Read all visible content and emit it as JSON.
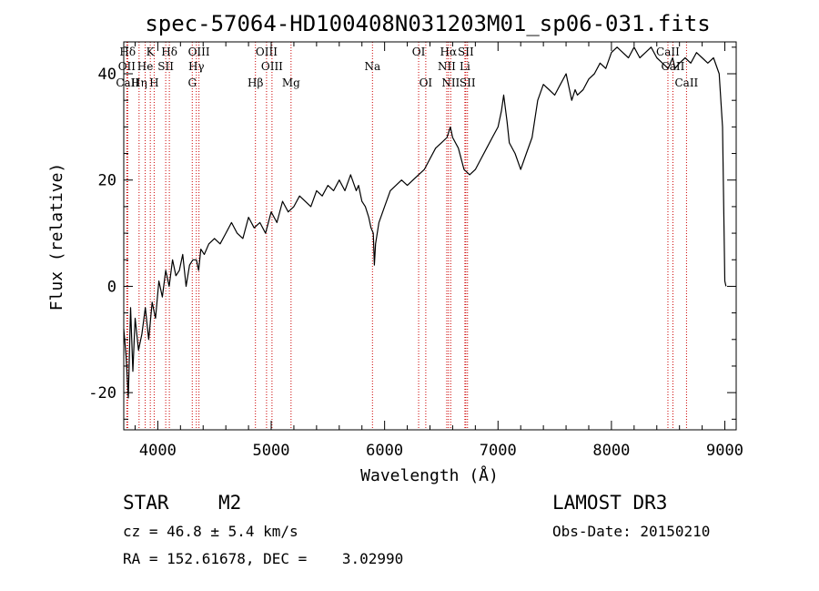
{
  "chart_data": {
    "type": "line",
    "title": "spec-57064-HD100408N031203M01_sp06-031.fits",
    "xlabel": "Wavelength (Å)",
    "ylabel": "Flux (relative)",
    "xlim": [
      3700,
      9100
    ],
    "ylim": [
      -27,
      46
    ],
    "xticks": [
      4000,
      5000,
      6000,
      7000,
      8000,
      9000
    ],
    "yticks": [
      -20,
      0,
      20,
      40
    ],
    "series": [
      {
        "name": "spectrum",
        "color": "#000000",
        "x": [
          3700,
          3720,
          3740,
          3760,
          3780,
          3800,
          3830,
          3860,
          3890,
          3920,
          3950,
          3980,
          4010,
          4040,
          4070,
          4100,
          4130,
          4160,
          4190,
          4220,
          4250,
          4280,
          4310,
          4340,
          4360,
          4380,
          4410,
          4450,
          4500,
          4550,
          4600,
          4650,
          4700,
          4750,
          4800,
          4850,
          4900,
          4950,
          5000,
          5050,
          5100,
          5150,
          5200,
          5250,
          5300,
          5350,
          5400,
          5450,
          5500,
          5550,
          5600,
          5650,
          5700,
          5750,
          5770,
          5800,
          5830,
          5860,
          5880,
          5900,
          5910,
          5920,
          5950,
          6000,
          6050,
          6100,
          6150,
          6200,
          6250,
          6300,
          6350,
          6400,
          6450,
          6500,
          6550,
          6580,
          6600,
          6650,
          6700,
          6750,
          6800,
          6850,
          6900,
          6950,
          7000,
          7030,
          7050,
          7080,
          7100,
          7150,
          7200,
          7250,
          7300,
          7350,
          7400,
          7450,
          7500,
          7550,
          7600,
          7630,
          7650,
          7680,
          7700,
          7750,
          7800,
          7850,
          7900,
          7950,
          8000,
          8050,
          8100,
          8150,
          8200,
          8250,
          8300,
          8350,
          8400,
          8450,
          8500,
          8520,
          8540,
          8560,
          8600,
          8650,
          8700,
          8750,
          8800,
          8850,
          8900,
          8950,
          8980,
          9000,
          9010
        ],
        "y": [
          -8,
          -13,
          -21,
          -4,
          -16,
          -6,
          -12,
          -9,
          -4,
          -10,
          -3,
          -6,
          1,
          -2,
          3,
          0,
          5,
          2,
          3,
          6,
          0,
          4,
          5,
          5,
          3,
          7,
          6,
          8,
          9,
          8,
          10,
          12,
          10,
          9,
          13,
          11,
          12,
          10,
          14,
          12,
          16,
          14,
          15,
          17,
          16,
          15,
          18,
          17,
          19,
          18,
          20,
          18,
          21,
          18,
          19,
          16,
          15,
          13,
          11,
          10,
          4,
          8,
          12,
          15,
          18,
          19,
          20,
          19,
          20,
          21,
          22,
          24,
          26,
          27,
          28,
          30,
          28,
          26,
          22,
          21,
          22,
          24,
          26,
          28,
          30,
          33,
          36,
          31,
          27,
          25,
          22,
          25,
          28,
          35,
          38,
          37,
          36,
          38,
          40,
          37,
          35,
          37,
          36,
          37,
          39,
          40,
          42,
          41,
          44,
          45,
          44,
          43,
          45,
          43,
          44,
          45,
          43,
          42,
          41,
          42,
          43,
          41,
          42,
          43,
          42,
          44,
          43,
          42,
          43,
          40,
          30,
          1,
          0
        ]
      }
    ],
    "line_markers": [
      {
        "name": "Hδ",
        "x": 3734,
        "row": 1
      },
      {
        "name": "OII",
        "x": 3727,
        "row": 2
      },
      {
        "name": "CaII",
        "x": 3734,
        "row": 3
      },
      {
        "name": "K",
        "x": 3934,
        "row": 1
      },
      {
        "name": "He",
        "x": 3889,
        "row": 2
      },
      {
        "name": "Hη",
        "x": 3835,
        "row": 3
      },
      {
        "name": "H",
        "x": 3968,
        "row": 3
      },
      {
        "name": "Hδ",
        "x": 4102,
        "row": 1
      },
      {
        "name": "SII",
        "x": 4070,
        "row": 2
      },
      {
        "name": "OIII",
        "x": 4363,
        "row": 1
      },
      {
        "name": "Hγ",
        "x": 4340,
        "row": 2
      },
      {
        "name": "G",
        "x": 4304,
        "row": 3
      },
      {
        "name": "Hβ",
        "x": 4861,
        "row": 3
      },
      {
        "name": "OIII",
        "x": 4959,
        "row": 1
      },
      {
        "name": "OIII",
        "x": 5007,
        "row": 2
      },
      {
        "name": "Mg",
        "x": 5175,
        "row": 3
      },
      {
        "name": "Na",
        "x": 5893,
        "row": 2
      },
      {
        "name": "OI",
        "x": 6300,
        "row": 1
      },
      {
        "name": "OI",
        "x": 6363,
        "row": 3
      },
      {
        "name": "Hα",
        "x": 6563,
        "row": 1
      },
      {
        "name": "NII",
        "x": 6548,
        "row": 2
      },
      {
        "name": "NII",
        "x": 6583,
        "row": 3
      },
      {
        "name": "SII",
        "x": 6716,
        "row": 1
      },
      {
        "name": "Li",
        "x": 6708,
        "row": 2
      },
      {
        "name": "SII",
        "x": 6731,
        "row": 3
      },
      {
        "name": "CaII",
        "x": 8498,
        "row": 1
      },
      {
        "name": "CaII",
        "x": 8542,
        "row": 2
      },
      {
        "name": "CaII",
        "x": 8662,
        "row": 3
      }
    ],
    "marker_color": "#cc0000"
  },
  "info": {
    "object_type": "STAR",
    "subclass": "M2",
    "survey": "LAMOST DR3",
    "redshift_text": "cz = 46.8 ± 5.4 km/s",
    "obs_date_text": "Obs-Date: 20150210",
    "coords_text": "RA = 152.61678, DEC =    3.02990"
  }
}
